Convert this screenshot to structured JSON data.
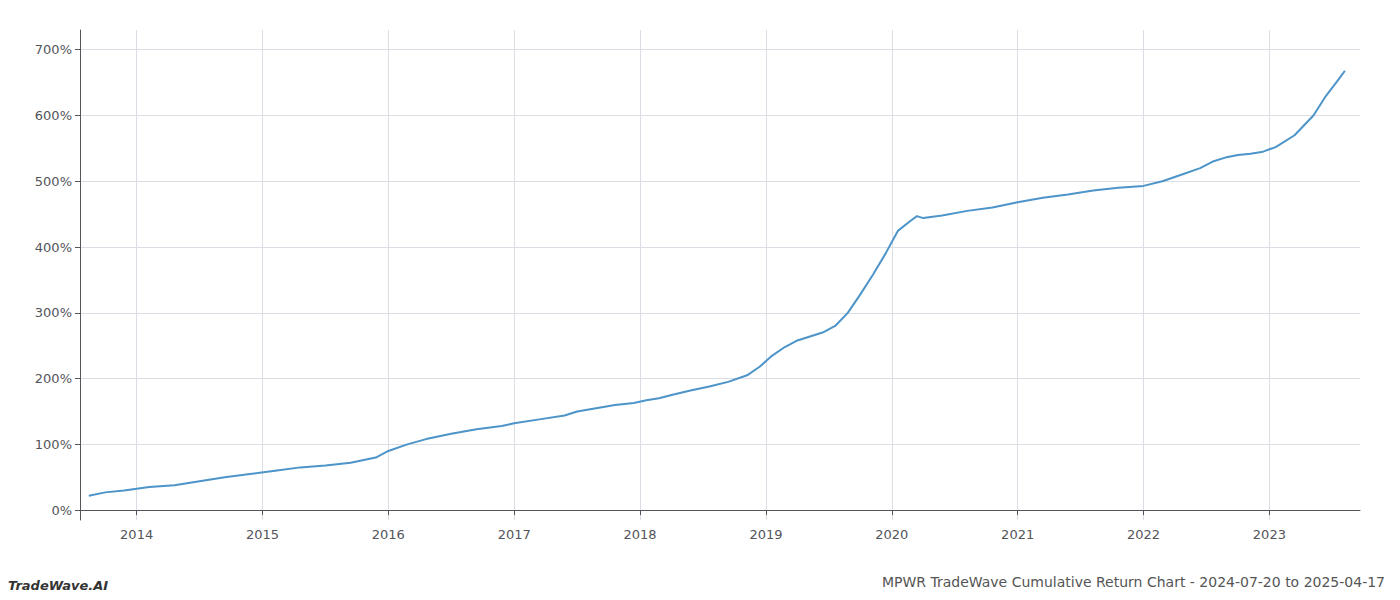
{
  "chart_data": {
    "type": "line",
    "title": "MPWR TradeWave Cumulative Return Chart - 2024-07-20 to 2025-04-17",
    "annotations": [
      "TradeWave.AI"
    ],
    "color": "#4d94c9",
    "grid": true,
    "xlim": [
      2013.55,
      2023.72
    ],
    "xticks": [
      2014,
      2015,
      2016,
      2017,
      2018,
      2019,
      2020,
      2021,
      2022,
      2023
    ],
    "ylim": [
      -15,
      730
    ],
    "yticks": [
      {
        "value": 0,
        "label": "0%"
      },
      {
        "value": 100,
        "label": "100%"
      },
      {
        "value": 200,
        "label": "200%"
      },
      {
        "value": 300,
        "label": "300%"
      },
      {
        "value": 400,
        "label": "400%"
      },
      {
        "value": 500,
        "label": "500%"
      },
      {
        "value": 600,
        "label": "600%"
      },
      {
        "value": 700,
        "label": "700%"
      }
    ],
    "x": [
      2013.62,
      2013.75,
      2013.9,
      2014.1,
      2014.3,
      2014.5,
      2014.7,
      2014.9,
      2015.1,
      2015.3,
      2015.5,
      2015.7,
      2015.9,
      2016.0,
      2016.15,
      2016.3,
      2016.5,
      2016.7,
      2016.9,
      2017.0,
      2017.2,
      2017.4,
      2017.5,
      2017.65,
      2017.8,
      2017.95,
      2018.05,
      2018.15,
      2018.25,
      2018.4,
      2018.55,
      2018.7,
      2018.85,
      2018.95,
      2019.05,
      2019.15,
      2019.25,
      2019.35,
      2019.45,
      2019.55,
      2019.65,
      2019.75,
      2019.85,
      2019.95,
      2020.05,
      2020.15,
      2020.2,
      2020.25,
      2020.4,
      2020.6,
      2020.8,
      2021.0,
      2021.2,
      2021.4,
      2021.6,
      2021.8,
      2022.0,
      2022.15,
      2022.3,
      2022.45,
      2022.55,
      2022.65,
      2022.75,
      2022.85,
      2022.95,
      2023.05,
      2023.2,
      2023.35,
      2023.45,
      2023.55,
      2023.6
    ],
    "values": [
      22,
      27,
      30,
      35,
      38,
      44,
      50,
      55,
      60,
      65,
      68,
      72,
      80,
      90,
      100,
      108,
      116,
      123,
      128,
      132,
      138,
      144,
      150,
      155,
      160,
      163,
      167,
      170,
      175,
      182,
      188,
      195,
      205,
      218,
      235,
      248,
      258,
      264,
      270,
      280,
      300,
      328,
      358,
      390,
      425,
      440,
      447,
      444,
      448,
      455,
      460,
      468,
      475,
      480,
      486,
      490,
      493,
      500,
      510,
      520,
      530,
      536,
      540,
      542,
      545,
      552,
      570,
      600,
      630,
      655,
      668
    ]
  }
}
